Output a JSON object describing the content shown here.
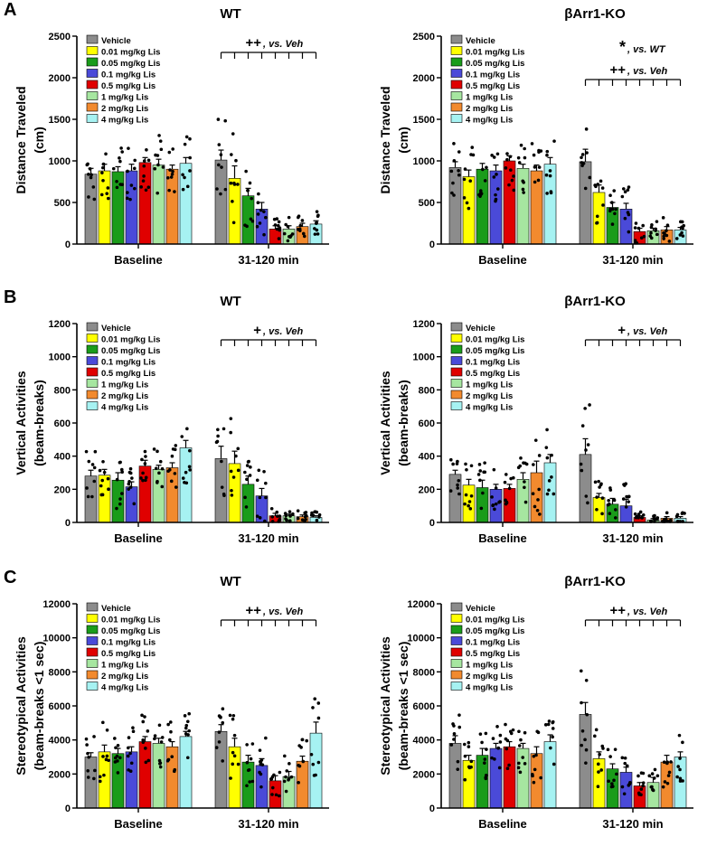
{
  "figure": {
    "panel_letters": [
      "A",
      "B",
      "C"
    ],
    "colors": {
      "Vehicle": "#8c8c8c",
      "0.01 mg/kg Lis": "#ffff00",
      "0.05 mg/kg Lis": "#1a9c1a",
      "0.1 mg/kg Lis": "#4a4ad8",
      "0.5 mg/kg Lis": "#e00000",
      "1 mg/kg Lis": "#a6e6a0",
      "2 mg/kg Lis": "#f28a2e",
      "4 mg/kg Lis": "#a6f2f2"
    }
  },
  "chart_data": [
    {
      "id": "A-WT",
      "panel": "A",
      "type": "bar",
      "title": "WT",
      "ylabel": [
        "Distance Traveled",
        "(cm)"
      ],
      "ylim": [
        0,
        2500
      ],
      "yticks": [
        "0",
        "500",
        "1000",
        "1500",
        "2000",
        "2500"
      ],
      "groups": [
        "Baseline",
        "31-120 min"
      ],
      "legend": [
        "Vehicle",
        "0.01 mg/kg Lis",
        "0.05 mg/kg Lis",
        "0.1 mg/kg Lis",
        "0.5 mg/kg Lis",
        "1 mg/kg Lis",
        "2 mg/kg Lis",
        "4 mg/kg Lis"
      ],
      "series": [
        {
          "name": "Vehicle",
          "values": [
            840,
            1010
          ],
          "sem": [
            70,
            120
          ]
        },
        {
          "name": "0.01 mg/kg Lis",
          "values": [
            880,
            790
          ],
          "sem": [
            80,
            150
          ]
        },
        {
          "name": "0.05 mg/kg Lis",
          "values": [
            870,
            580
          ],
          "sem": [
            60,
            90
          ]
        },
        {
          "name": "0.1 mg/kg Lis",
          "values": [
            880,
            420
          ],
          "sem": [
            80,
            80
          ]
        },
        {
          "name": "0.5 mg/kg Lis",
          "values": [
            980,
            180
          ],
          "sem": [
            60,
            40
          ]
        },
        {
          "name": "1 mg/kg Lis",
          "values": [
            950,
            180
          ],
          "sem": [
            70,
            40
          ]
        },
        {
          "name": "2 mg/kg Lis",
          "values": [
            900,
            210
          ],
          "sem": [
            50,
            40
          ]
        },
        {
          "name": "4 mg/kg Lis",
          "values": [
            970,
            240
          ],
          "sem": [
            70,
            40
          ]
        }
      ],
      "annotations": [
        {
          "symbol": "++",
          "text": ", vs. Veh"
        }
      ]
    },
    {
      "id": "A-KO",
      "panel": "",
      "type": "bar",
      "title": "βArr1-KO",
      "ylabel": [
        "Distance Traveled",
        "(cm)"
      ],
      "ylim": [
        0,
        2500
      ],
      "yticks": [
        "0",
        "500",
        "1000",
        "1500",
        "2000",
        "2500"
      ],
      "groups": [
        "Baseline",
        "31-120 min"
      ],
      "legend": [
        "Vehicle",
        "0.01 mg/kg Lis",
        "0.05 mg/kg Lis",
        "0.1 mg/kg Lis",
        "0.5 mg/kg Lis",
        "1 mg/kg Lis",
        "2 mg/kg Lis",
        "4 mg/kg Lis"
      ],
      "series": [
        {
          "name": "Vehicle",
          "values": [
            920,
            990
          ],
          "sem": [
            70,
            150
          ]
        },
        {
          "name": "0.01 mg/kg Lis",
          "values": [
            810,
            620
          ],
          "sem": [
            80,
            90
          ]
        },
        {
          "name": "0.05 mg/kg Lis",
          "values": [
            900,
            440
          ],
          "sem": [
            70,
            60
          ]
        },
        {
          "name": "0.1 mg/kg Lis",
          "values": [
            880,
            420
          ],
          "sem": [
            70,
            70
          ]
        },
        {
          "name": "0.5 mg/kg Lis",
          "values": [
            1000,
            150
          ],
          "sem": [
            60,
            40
          ]
        },
        {
          "name": "1 mg/kg Lis",
          "values": [
            910,
            160
          ],
          "sem": [
            50,
            30
          ]
        },
        {
          "name": "2 mg/kg Lis",
          "values": [
            880,
            170
          ],
          "sem": [
            70,
            40
          ]
        },
        {
          "name": "4 mg/kg Lis",
          "values": [
            960,
            170
          ],
          "sem": [
            80,
            30
          ]
        }
      ],
      "annotations": [
        {
          "symbol": "*",
          "text": ", vs. WT"
        },
        {
          "symbol": "++",
          "text": ", vs. Veh"
        }
      ]
    },
    {
      "id": "B-WT",
      "panel": "B",
      "type": "bar",
      "title": "WT",
      "ylabel": [
        "Vertical Activities",
        "(beam-breaks)"
      ],
      "ylim": [
        0,
        1200
      ],
      "yticks": [
        "0",
        "200",
        "400",
        "600",
        "800",
        "1000",
        "1200"
      ],
      "groups": [
        "Baseline",
        "31-120 min"
      ],
      "legend": [
        "Vehicle",
        "0.01 mg/kg Lis",
        "0.05 mg/kg Lis",
        "0.1 mg/kg Lis",
        "0.5 mg/kg Lis",
        "1 mg/kg Lis",
        "2 mg/kg Lis",
        "4 mg/kg Lis"
      ],
      "series": [
        {
          "name": "Vehicle",
          "values": [
            280,
            385
          ],
          "sem": [
            35,
            75
          ]
        },
        {
          "name": "0.01 mg/kg Lis",
          "values": [
            285,
            355
          ],
          "sem": [
            35,
            75
          ]
        },
        {
          "name": "0.05 mg/kg Lis",
          "values": [
            255,
            230
          ],
          "sem": [
            45,
            50
          ]
        },
        {
          "name": "0.1 mg/kg Lis",
          "values": [
            215,
            160
          ],
          "sem": [
            30,
            45
          ]
        },
        {
          "name": "0.5 mg/kg Lis",
          "values": [
            340,
            40
          ],
          "sem": [
            35,
            15
          ]
        },
        {
          "name": "1 mg/kg Lis",
          "values": [
            320,
            40
          ],
          "sem": [
            25,
            10
          ]
        },
        {
          "name": "2 mg/kg Lis",
          "values": [
            330,
            35
          ],
          "sem": [
            30,
            10
          ]
        },
        {
          "name": "4 mg/kg Lis",
          "values": [
            450,
            30
          ],
          "sem": [
            45,
            10
          ]
        }
      ],
      "annotations": [
        {
          "symbol": "+",
          "text": ", vs. Veh"
        }
      ]
    },
    {
      "id": "B-KO",
      "panel": "",
      "type": "bar",
      "title": "βArr1-KO",
      "ylabel": [
        "Vertical Activities",
        "(beam-breaks)"
      ],
      "ylim": [
        0,
        1200
      ],
      "yticks": [
        "0",
        "200",
        "400",
        "600",
        "800",
        "1000",
        "1200"
      ],
      "groups": [
        "Baseline",
        "31-120 min"
      ],
      "legend": [
        "Vehicle",
        "0.01 mg/kg Lis",
        "0.05 mg/kg Lis",
        "0.1 mg/kg Lis",
        "0.5 mg/kg Lis",
        "1 mg/kg Lis",
        "2 mg/kg Lis",
        "4 mg/kg Lis"
      ],
      "series": [
        {
          "name": "Vehicle",
          "values": [
            290,
            410
          ],
          "sem": [
            25,
            95
          ]
        },
        {
          "name": "0.01 mg/kg Lis",
          "values": [
            225,
            150
          ],
          "sem": [
            35,
            25
          ]
        },
        {
          "name": "0.05 mg/kg Lis",
          "values": [
            210,
            110
          ],
          "sem": [
            45,
            35
          ]
        },
        {
          "name": "0.1 mg/kg Lis",
          "values": [
            200,
            100
          ],
          "sem": [
            30,
            40
          ]
        },
        {
          "name": "0.5 mg/kg Lis",
          "values": [
            205,
            30
          ],
          "sem": [
            25,
            10
          ]
        },
        {
          "name": "1 mg/kg Lis",
          "values": [
            260,
            15
          ],
          "sem": [
            40,
            8
          ]
        },
        {
          "name": "2 mg/kg Lis",
          "values": [
            300,
            25
          ],
          "sem": [
            70,
            10
          ]
        },
        {
          "name": "4 mg/kg Lis",
          "values": [
            360,
            25
          ],
          "sem": [
            50,
            10
          ]
        }
      ],
      "annotations": [
        {
          "symbol": "+",
          "text": ", vs. Veh"
        }
      ]
    },
    {
      "id": "C-WT",
      "panel": "C",
      "type": "bar",
      "title": "WT",
      "ylabel": [
        "Stereotypical Activities",
        "(beam-breaks <1 sec)"
      ],
      "ylim": [
        0,
        12000
      ],
      "yticks": [
        "0",
        "2000",
        "4000",
        "6000",
        "8000",
        "10000",
        "12000"
      ],
      "groups": [
        "Baseline",
        "31-120 min"
      ],
      "legend": [
        "Vehicle",
        "0.01 mg/kg Lis",
        "0.05 mg/kg Lis",
        "0.1 mg/kg Lis",
        "0.5 mg/kg Lis",
        "1 mg/kg Lis",
        "2 mg/kg Lis",
        "4 mg/kg Lis"
      ],
      "series": [
        {
          "name": "Vehicle",
          "values": [
            3000,
            4500
          ],
          "sem": [
            250,
            400
          ]
        },
        {
          "name": "0.01 mg/kg Lis",
          "values": [
            3300,
            3600
          ],
          "sem": [
            400,
            500
          ]
        },
        {
          "name": "0.05 mg/kg Lis",
          "values": [
            3200,
            2700
          ],
          "sem": [
            300,
            400
          ]
        },
        {
          "name": "0.1 mg/kg Lis",
          "values": [
            3300,
            2500
          ],
          "sem": [
            300,
            400
          ]
        },
        {
          "name": "0.5 mg/kg Lis",
          "values": [
            3900,
            1600
          ],
          "sem": [
            300,
            300
          ]
        },
        {
          "name": "1 mg/kg Lis",
          "values": [
            3800,
            1850
          ],
          "sem": [
            300,
            300
          ]
        },
        {
          "name": "2 mg/kg Lis",
          "values": [
            3600,
            2750
          ],
          "sem": [
            300,
            300
          ]
        },
        {
          "name": "4 mg/kg Lis",
          "values": [
            4200,
            4400
          ],
          "sem": [
            300,
            650
          ]
        }
      ],
      "annotations": [
        {
          "symbol": "++",
          "text": ", vs. Veh"
        }
      ]
    },
    {
      "id": "C-KO",
      "panel": "",
      "type": "bar",
      "title": "βArr1-KO",
      "ylabel": [
        "Stereotypical Activities",
        "(beam-breaks <1 sec)"
      ],
      "ylim": [
        0,
        12000
      ],
      "yticks": [
        "0",
        "2000",
        "4000",
        "6000",
        "8000",
        "10000",
        "12000"
      ],
      "groups": [
        "Baseline",
        "31-120 min"
      ],
      "legend": [
        "Vehicle",
        "0.01 mg/kg Lis",
        "0.05 mg/kg Lis",
        "0.1 mg/kg Lis",
        "0.5 mg/kg Lis",
        "1 mg/kg Lis",
        "2 mg/kg Lis",
        "4 mg/kg Lis"
      ],
      "series": [
        {
          "name": "Vehicle",
          "values": [
            3800,
            5500
          ],
          "sem": [
            450,
            700
          ]
        },
        {
          "name": "0.01 mg/kg Lis",
          "values": [
            2800,
            2900
          ],
          "sem": [
            300,
            400
          ]
        },
        {
          "name": "0.05 mg/kg Lis",
          "values": [
            3100,
            2300
          ],
          "sem": [
            400,
            300
          ]
        },
        {
          "name": "0.1 mg/kg Lis",
          "values": [
            3500,
            2100
          ],
          "sem": [
            300,
            300
          ]
        },
        {
          "name": "0.5 mg/kg Lis",
          "values": [
            3600,
            1300
          ],
          "sem": [
            300,
            200
          ]
        },
        {
          "name": "1 mg/kg Lis",
          "values": [
            3500,
            1500
          ],
          "sem": [
            300,
            300
          ]
        },
        {
          "name": "2 mg/kg Lis",
          "values": [
            3200,
            2700
          ],
          "sem": [
            400,
            400
          ]
        },
        {
          "name": "4 mg/kg Lis",
          "values": [
            3900,
            3000
          ],
          "sem": [
            400,
            300
          ]
        }
      ],
      "annotations": [
        {
          "symbol": "++",
          "text": ", vs. Veh"
        }
      ]
    }
  ]
}
